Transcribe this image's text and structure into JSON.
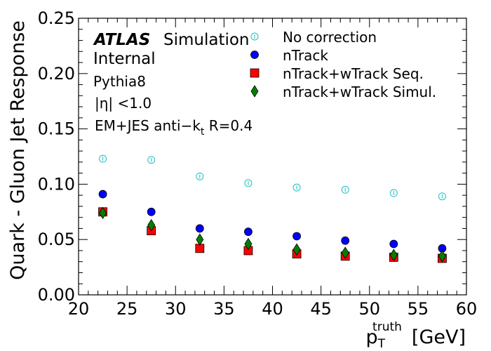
{
  "chart_data": {
    "type": "scatter",
    "xlabel_main": "p",
    "xlabel_sup": "truth",
    "xlabel_sub": "T",
    "xlabel_unit": "[GeV]",
    "ylabel": "Quark - Gluon Jet Response",
    "xlim": [
      20,
      60
    ],
    "ylim": [
      0.0,
      0.25
    ],
    "xticks": [
      "20",
      "25",
      "30",
      "35",
      "40",
      "45",
      "50",
      "55",
      "60"
    ],
    "yticks": [
      "0.00",
      "0.05",
      "0.10",
      "0.15",
      "0.20",
      "0.25"
    ],
    "x": [
      22.5,
      27.5,
      32.5,
      37.5,
      42.5,
      47.5,
      52.5,
      57.5
    ],
    "series": [
      {
        "name": "No correction",
        "marker": "open-circle",
        "color": "#1fbfbf",
        "values": [
          0.123,
          0.122,
          0.107,
          0.101,
          0.097,
          0.095,
          0.092,
          0.089
        ]
      },
      {
        "name": "nTrack",
        "marker": "circle",
        "color": "#0000ff",
        "values": [
          0.091,
          0.075,
          0.06,
          0.057,
          0.053,
          0.049,
          0.046,
          0.042
        ]
      },
      {
        "name": "nTrack+wTrack Seq.",
        "marker": "square",
        "color": "#ff0000",
        "values": [
          0.075,
          0.058,
          0.042,
          0.04,
          0.037,
          0.035,
          0.034,
          0.033
        ]
      },
      {
        "name": "nTrack+wTrack Simul.",
        "marker": "diamond",
        "color": "#008000",
        "values": [
          0.074,
          0.063,
          0.05,
          0.046,
          0.041,
          0.038,
          0.036,
          0.035
        ]
      }
    ],
    "annotations": {
      "atlas": "ATLAS",
      "simulation": "Simulation",
      "internal": "Internal",
      "generator": "Pythia8",
      "eta_cut": "|η| <1.0",
      "jet_def_pre": "EM+JES anti−k",
      "jet_def_sub": "t",
      "jet_def_post": " R=0.4"
    },
    "legend_position": "top-right",
    "grid": false
  }
}
